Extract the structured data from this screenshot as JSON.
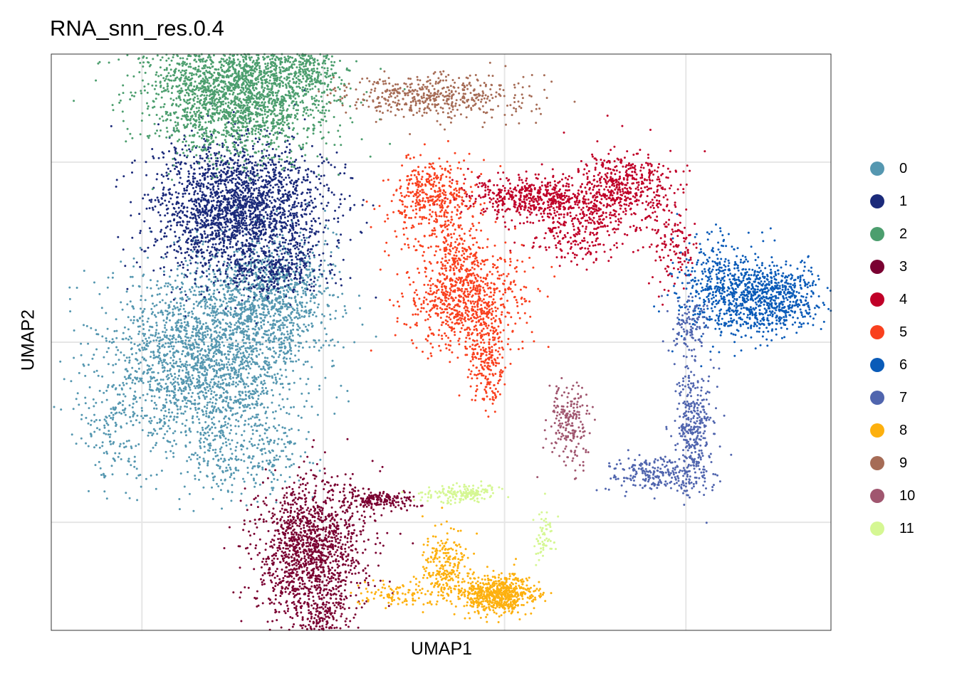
{
  "chart_data": {
    "type": "scatter",
    "title": "RNA_snn_res.0.4",
    "xlabel": "UMAP1",
    "ylabel": "UMAP2",
    "xlim": [
      -10.5,
      11
    ],
    "ylim": [
      -8,
      8
    ],
    "grid": true,
    "x_ticks": [
      -8,
      -3,
      2,
      7
    ],
    "y_ticks": [
      -5,
      0,
      5
    ],
    "legend_position": "right",
    "series": [
      {
        "name": "0",
        "color": "#5597B0",
        "clusters": [
          {
            "x": -6.3,
            "y": -0.5,
            "sx": 1.6,
            "sy": 1.5,
            "n": 2200
          },
          {
            "x": -4.4,
            "y": 1.3,
            "sx": 0.9,
            "sy": 1.0,
            "n": 900
          },
          {
            "x": -5.1,
            "y": -3.2,
            "sx": 1.0,
            "sy": 0.6,
            "n": 250
          },
          {
            "x": -8.8,
            "y": -2.5,
            "sx": 0.6,
            "sy": 0.9,
            "n": 120
          }
        ]
      },
      {
        "name": "1",
        "color": "#1B2A7A",
        "clusters": [
          {
            "x": -5.3,
            "y": 3.7,
            "sx": 1.4,
            "sy": 1.1,
            "n": 2300
          },
          {
            "x": -4.5,
            "y": 1.9,
            "sx": 0.9,
            "sy": 0.4,
            "n": 200
          }
        ]
      },
      {
        "name": "2",
        "color": "#4C9E6E",
        "clusters": [
          {
            "x": -5.4,
            "y": 7.0,
            "sx": 1.5,
            "sy": 1.0,
            "n": 2400
          },
          {
            "x": -3.4,
            "y": 7.6,
            "sx": 0.5,
            "sy": 0.5,
            "n": 200
          }
        ]
      },
      {
        "name": "3",
        "color": "#7A0031",
        "clusters": [
          {
            "x": -3.4,
            "y": -5.8,
            "sx": 0.9,
            "sy": 1.2,
            "n": 1400
          },
          {
            "x": -3.0,
            "y": -8.0,
            "sx": 0.4,
            "sy": 0.8,
            "n": 250
          },
          {
            "x": -1.4,
            "y": -4.4,
            "sx": 0.6,
            "sy": 0.15,
            "n": 180
          }
        ]
      },
      {
        "name": "4",
        "color": "#C00028",
        "clusters": [
          {
            "x": 2.7,
            "y": 4.0,
            "sx": 1.1,
            "sy": 0.35,
            "n": 500
          },
          {
            "x": 5.3,
            "y": 4.3,
            "sx": 0.8,
            "sy": 0.6,
            "n": 500
          },
          {
            "x": 4.0,
            "y": 3.2,
            "sx": 0.9,
            "sy": 0.6,
            "n": 300
          },
          {
            "x": 6.7,
            "y": 2.6,
            "sx": 0.4,
            "sy": 0.6,
            "n": 120
          }
        ]
      },
      {
        "name": "5",
        "color": "#F9401E",
        "clusters": [
          {
            "x": 0.9,
            "y": 1.2,
            "sx": 0.9,
            "sy": 0.8,
            "n": 800
          },
          {
            "x": 0.0,
            "y": 3.9,
            "sx": 0.7,
            "sy": 0.7,
            "n": 450
          },
          {
            "x": 1.5,
            "y": -0.6,
            "sx": 0.3,
            "sy": 0.7,
            "n": 200
          },
          {
            "x": 0.7,
            "y": 2.4,
            "sx": 0.4,
            "sy": 0.5,
            "n": 120
          }
        ]
      },
      {
        "name": "6",
        "color": "#0A5BB8",
        "clusters": [
          {
            "x": 9.3,
            "y": 1.2,
            "sx": 0.8,
            "sy": 0.6,
            "n": 700
          },
          {
            "x": 7.9,
            "y": 1.5,
            "sx": 0.7,
            "sy": 0.8,
            "n": 450
          }
        ]
      },
      {
        "name": "7",
        "color": "#5065AE",
        "clusters": [
          {
            "x": 7.2,
            "y": -2.3,
            "sx": 0.3,
            "sy": 1.1,
            "n": 350
          },
          {
            "x": 6.3,
            "y": -3.7,
            "sx": 0.8,
            "sy": 0.3,
            "n": 250
          },
          {
            "x": 7.1,
            "y": 0.4,
            "sx": 0.3,
            "sy": 0.5,
            "n": 100
          }
        ]
      },
      {
        "name": "8",
        "color": "#FDB00E",
        "clusters": [
          {
            "x": 1.8,
            "y": -7.0,
            "sx": 0.6,
            "sy": 0.3,
            "n": 650
          },
          {
            "x": 0.4,
            "y": -6.2,
            "sx": 0.4,
            "sy": 0.6,
            "n": 250
          },
          {
            "x": -0.9,
            "y": -7.0,
            "sx": 0.6,
            "sy": 0.2,
            "n": 100
          }
        ]
      },
      {
        "name": "9",
        "color": "#A66C56",
        "clusters": [
          {
            "x": 0.0,
            "y": 6.8,
            "sx": 1.5,
            "sy": 0.35,
            "n": 500
          }
        ]
      },
      {
        "name": "10",
        "color": "#A0566F",
        "clusters": [
          {
            "x": 3.8,
            "y": -2.3,
            "sx": 0.35,
            "sy": 0.7,
            "n": 200
          }
        ]
      },
      {
        "name": "11",
        "color": "#D5F793",
        "clusters": [
          {
            "x": 0.8,
            "y": -4.2,
            "sx": 0.6,
            "sy": 0.15,
            "n": 180
          },
          {
            "x": 3.1,
            "y": -5.3,
            "sx": 0.2,
            "sy": 0.5,
            "n": 60
          }
        ]
      }
    ]
  }
}
